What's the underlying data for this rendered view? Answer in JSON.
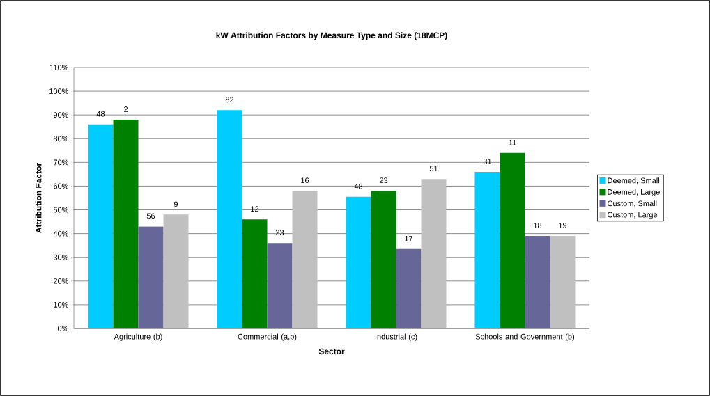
{
  "chart_data": {
    "type": "bar",
    "title": "kW Attribution Factors by Measure Type and Size (18MCP)",
    "xlabel": "Sector",
    "ylabel": "Attribution Factor",
    "categories": [
      "Agriculture (b)",
      "Commercial (a,b)",
      "Industrial (c)",
      "Schools and Government (b)"
    ],
    "series": [
      {
        "name": "Deemed, Small",
        "color": "#00ccff",
        "values": [
          86,
          92,
          55.5,
          66
        ]
      },
      {
        "name": "Deemed, Large",
        "color": "#008000",
        "values": [
          88,
          46,
          58,
          74
        ]
      },
      {
        "name": "Custom, Small",
        "color": "#666699",
        "values": [
          43,
          36,
          33.5,
          39
        ]
      },
      {
        "name": "Custom, Large",
        "color": "#c0c0c0",
        "values": [
          48,
          58,
          63,
          39
        ]
      }
    ],
    "ylim": [
      0,
      110
    ],
    "yticks": [
      {
        "value": 0,
        "label": "0%"
      },
      {
        "value": 10,
        "label": "10%"
      },
      {
        "value": 20,
        "label": "20%"
      },
      {
        "value": 30,
        "label": "30%"
      },
      {
        "value": 40,
        "label": "40%"
      },
      {
        "value": 50,
        "label": "50%"
      },
      {
        "value": 60,
        "label": "60%"
      },
      {
        "value": 70,
        "label": "70%"
      },
      {
        "value": 80,
        "label": "80%"
      },
      {
        "value": 90,
        "label": "90%"
      },
      {
        "value": 100,
        "label": "100%"
      },
      {
        "value": 110,
        "label": "110%"
      }
    ],
    "grid": "y",
    "legend": "right",
    "annotations": [
      "48",
      "82",
      "48",
      "31",
      "2",
      "12",
      "23",
      "11",
      "56",
      "23",
      "17",
      "18",
      "9",
      "16",
      "51",
      "19"
    ]
  }
}
